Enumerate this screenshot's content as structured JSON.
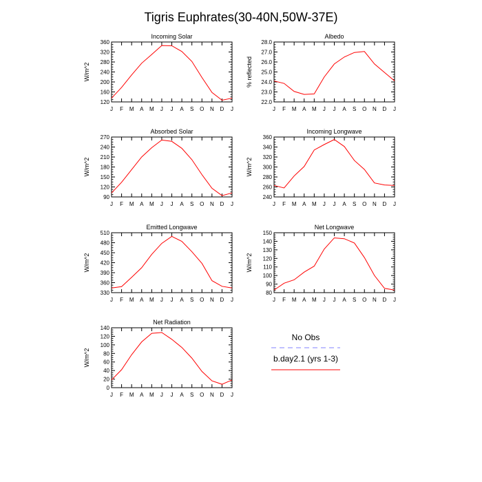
{
  "page": {
    "title": "Tigris Euphrates(30-40N,50W-37E)"
  },
  "months": [
    "J",
    "F",
    "M",
    "A",
    "M",
    "J",
    "J",
    "A",
    "S",
    "O",
    "N",
    "D",
    "J"
  ],
  "colors": {
    "model_line": "#ff0000",
    "obs_line": "#8080ff",
    "axis": "#000000"
  },
  "legend": {
    "obs_label": "No Obs",
    "model_label": "b.day2.1 (yrs 1-3)"
  },
  "chart_data": [
    {
      "type": "line",
      "title": "Incoming Solar",
      "xlabel": "",
      "ylabel": "W/m^2",
      "ylim": [
        120,
        360
      ],
      "yticks": [
        120,
        160,
        200,
        240,
        280,
        320,
        360
      ],
      "ytick_labels": [
        "120",
        "160",
        "200",
        "240",
        "280",
        "320",
        "360"
      ],
      "series": [
        {
          "name": "b.day2.1 (yrs 1-3)",
          "values": [
            135,
            178,
            228,
            275,
            310,
            346,
            345,
            322,
            282,
            218,
            158,
            127,
            135
          ]
        }
      ]
    },
    {
      "type": "line",
      "title": "Albedo",
      "xlabel": "",
      "ylabel": "% reflected",
      "ylim": [
        22.0,
        28.0
      ],
      "yticks": [
        22,
        23,
        24,
        25,
        26,
        27,
        28
      ],
      "ytick_labels": [
        "22.0",
        "23.0",
        "24.0",
        "25.0",
        "26.0",
        "27.0",
        "28.0"
      ],
      "series": [
        {
          "name": "b.day2.1 (yrs 1-3)",
          "values": [
            24.1,
            23.85,
            23.05,
            22.75,
            22.8,
            24.5,
            25.8,
            26.5,
            26.95,
            27.05,
            25.8,
            24.95,
            24.1
          ]
        }
      ]
    },
    {
      "type": "line",
      "title": "Absorbed Solar",
      "xlabel": "",
      "ylabel": "W/m^2",
      "ylim": [
        90,
        270
      ],
      "yticks": [
        90,
        120,
        150,
        180,
        210,
        240,
        270
      ],
      "ytick_labels": [
        "90",
        "120",
        "150",
        "180",
        "210",
        "240",
        "270"
      ],
      "series": [
        {
          "name": "b.day2.1 (yrs 1-3)",
          "values": [
            102,
            134,
            172,
            210,
            238,
            261,
            257,
            236,
            202,
            157,
            116,
            94,
            102
          ]
        }
      ]
    },
    {
      "type": "line",
      "title": "Incoming Longwave",
      "xlabel": "",
      "ylabel": "W/m^2",
      "ylim": [
        240,
        360
      ],
      "yticks": [
        240,
        260,
        280,
        300,
        320,
        340,
        360
      ],
      "ytick_labels": [
        "240",
        "260",
        "280",
        "300",
        "320",
        "340",
        "360"
      ],
      "series": [
        {
          "name": "b.day2.1 (yrs 1-3)",
          "values": [
            263,
            258,
            282,
            301,
            334,
            345,
            355,
            341,
            313,
            295,
            268,
            264,
            263
          ]
        }
      ]
    },
    {
      "type": "line",
      "title": "Emitted Longwave",
      "xlabel": "",
      "ylabel": "W/m^2",
      "ylim": [
        330,
        510
      ],
      "yticks": [
        330,
        360,
        390,
        420,
        450,
        480,
        510
      ],
      "ytick_labels": [
        "330",
        "360",
        "390",
        "420",
        "450",
        "480",
        "510"
      ],
      "series": [
        {
          "name": "b.day2.1 (yrs 1-3)",
          "values": [
            344,
            348,
            376,
            405,
            445,
            478,
            499,
            484,
            453,
            418,
            366,
            349,
            344
          ]
        }
      ]
    },
    {
      "type": "line",
      "title": "Net Longwave",
      "xlabel": "",
      "ylabel": "W/m^2",
      "ylim": [
        80,
        150
      ],
      "yticks": [
        80,
        90,
        100,
        110,
        120,
        130,
        140,
        150
      ],
      "ytick_labels": [
        "80",
        "90",
        "100",
        "110",
        "120",
        "130",
        "140",
        "150"
      ],
      "series": [
        {
          "name": "b.day2.1 (yrs 1-3)",
          "values": [
            83,
            91,
            95,
            104,
            111,
            131,
            144,
            143,
            138,
            121,
            100,
            85,
            83
          ]
        }
      ]
    },
    {
      "type": "line",
      "title": "Net Radiation",
      "xlabel": "",
      "ylabel": "W/m^2",
      "ylim": [
        0,
        140
      ],
      "yticks": [
        0,
        20,
        40,
        60,
        80,
        100,
        120,
        140
      ],
      "ytick_labels": [
        "0",
        "20",
        "40",
        "60",
        "80",
        "100",
        "120",
        "140"
      ],
      "series": [
        {
          "name": "b.day2.1 (yrs 1-3)",
          "values": [
            18,
            42,
            77,
            107,
            127,
            129,
            113,
            94,
            69,
            38,
            16,
            8,
            18
          ]
        }
      ]
    }
  ]
}
